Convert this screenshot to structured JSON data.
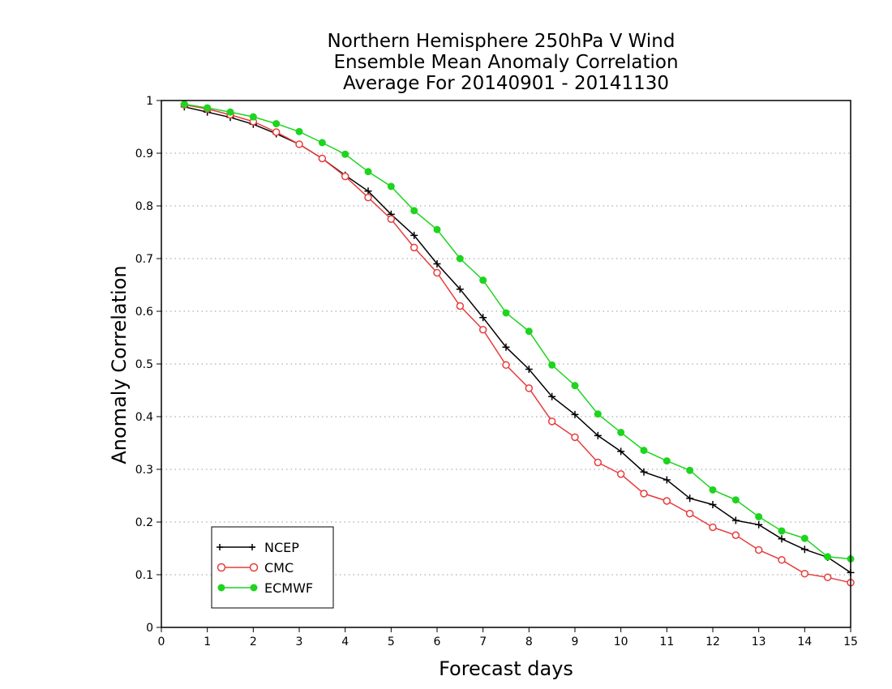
{
  "chart_data": {
    "type": "line",
    "title": [
      "Northern Hemisphere 250hPa V Wind",
      "Ensemble Mean Anomaly Correlation",
      "Average For 20140901 - 20141130"
    ],
    "xlabel": "Forecast days",
    "ylabel": "Anomaly Correlation",
    "xlim": [
      0,
      15
    ],
    "ylim": [
      0,
      1
    ],
    "xticks": [
      "0",
      "1",
      "2",
      "3",
      "4",
      "5",
      "6",
      "7",
      "8",
      "9",
      "10",
      "11",
      "12",
      "13",
      "14",
      "15"
    ],
    "yticks": [
      "0",
      "0.1",
      "0.2",
      "0.3",
      "0.4",
      "0.5",
      "0.6",
      "0.7",
      "0.8",
      "0.9",
      "1"
    ],
    "grid": "horizontal dotted",
    "legend_position": "bottom-left",
    "x": [
      0.5,
      1,
      1.5,
      2,
      2.5,
      3,
      3.5,
      4,
      4.5,
      5,
      5.5,
      6,
      6.5,
      7,
      7.5,
      8,
      8.5,
      9,
      9.5,
      10,
      10.5,
      11,
      11.5,
      12,
      12.5,
      13,
      13.5,
      14,
      14.5,
      15
    ],
    "series": [
      {
        "name": "NCEP",
        "color": "#000000",
        "marker": "plus",
        "values": [
          0.988,
          0.978,
          0.968,
          0.955,
          0.937,
          0.917,
          0.89,
          0.858,
          0.828,
          0.784,
          0.744,
          0.69,
          0.642,
          0.588,
          0.532,
          0.49,
          0.438,
          0.404,
          0.364,
          0.334,
          0.295,
          0.28,
          0.245,
          0.233,
          0.203,
          0.195,
          0.168,
          0.148,
          0.133,
          0.104
        ]
      },
      {
        "name": "CMC",
        "color": "#e83c3c",
        "marker": "open-circle",
        "values": [
          0.992,
          0.984,
          0.973,
          0.96,
          0.94,
          0.917,
          0.89,
          0.856,
          0.816,
          0.775,
          0.721,
          0.673,
          0.61,
          0.565,
          0.498,
          0.454,
          0.391,
          0.361,
          0.313,
          0.291,
          0.254,
          0.24,
          0.216,
          0.19,
          0.175,
          0.147,
          0.128,
          0.102,
          0.095,
          0.085
        ]
      },
      {
        "name": "ECMWF",
        "color": "#1ed41e",
        "marker": "filled-circle",
        "values": [
          0.993,
          0.986,
          0.978,
          0.969,
          0.956,
          0.941,
          0.92,
          0.898,
          0.865,
          0.837,
          0.791,
          0.755,
          0.7,
          0.659,
          0.597,
          0.562,
          0.498,
          0.459,
          0.405,
          0.37,
          0.336,
          0.316,
          0.298,
          0.261,
          0.242,
          0.21,
          0.183,
          0.169,
          0.134,
          0.13
        ]
      }
    ]
  }
}
